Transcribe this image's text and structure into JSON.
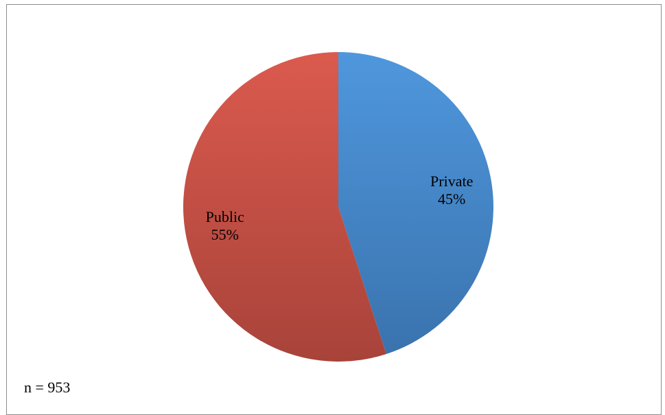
{
  "chart_data": {
    "type": "pie",
    "slices": [
      {
        "label": "Private",
        "value": 45,
        "value_label": "45%",
        "color": "#4a8fd6"
      },
      {
        "label": "Public",
        "value": 55,
        "value_label": "55%",
        "color": "#d0554a"
      }
    ],
    "start_angle_deg": 0,
    "direction": "clockwise",
    "legend": "none",
    "note": "n = 953"
  }
}
